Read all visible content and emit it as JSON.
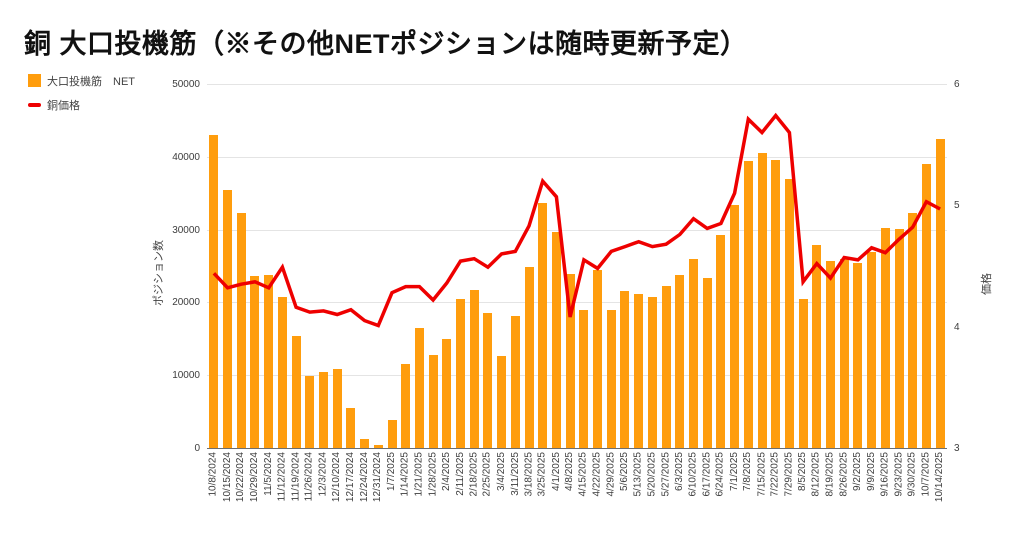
{
  "title": "銅 大口投機筋（※その他NETポジションは随時更新予定）",
  "legend": [
    {
      "label": "大口投機筋　NET",
      "type": "bar"
    },
    {
      "label": "銅価格",
      "type": "line"
    }
  ],
  "colors": {
    "bar": "#ff9d0d",
    "line": "#ee0000",
    "grid": "#e4e4e4",
    "axis_baseline": "#6e6e6e",
    "text": "#3d3d3d"
  },
  "chart_data": {
    "type": "bar+line",
    "title": "銅 大口投機筋（※その他NETポジションは随時更新予定）",
    "grid": true,
    "legend_position": "top-left",
    "categories": [
      "10/8/2024",
      "10/15/2024",
      "10/22/2024",
      "10/29/2024",
      "11/5/2024",
      "11/12/2024",
      "11/19/2024",
      "11/26/2024",
      "12/3/2024",
      "12/10/2024",
      "12/17/2024",
      "12/24/2024",
      "12/31/2024",
      "1/7/2025",
      "1/14/2025",
      "1/21/2025",
      "1/28/2025",
      "2/4/2025",
      "2/11/2025",
      "2/18/2025",
      "2/25/2025",
      "3/4/2025",
      "3/11/2025",
      "3/18/2025",
      "3/25/2025",
      "4/1/2025",
      "4/8/2025",
      "4/15/2025",
      "4/22/2025",
      "4/29/2025",
      "5/6/2025",
      "5/13/2025",
      "5/20/2025",
      "5/27/2025",
      "6/3/2025",
      "6/10/2025",
      "6/17/2025",
      "6/24/2025",
      "7/1/2025",
      "7/8/2025",
      "7/15/2025",
      "7/22/2025",
      "7/29/2025",
      "8/5/2025",
      "8/12/2025",
      "8/19/2025",
      "8/26/2025",
      "9/2/2025",
      "9/9/2025",
      "9/16/2025",
      "9/23/2025",
      "9/30/2025",
      "10/7/2025",
      "10/14/2025"
    ],
    "series": [
      {
        "name": "大口投機筋　NET",
        "type": "bar",
        "axis": "left",
        "values": [
          43000,
          35400,
          32300,
          23600,
          23700,
          20700,
          15400,
          9900,
          10400,
          10800,
          5500,
          1300,
          400,
          3800,
          11500,
          16500,
          12800,
          15000,
          20500,
          21700,
          18500,
          12600,
          18200,
          24900,
          33700,
          29700,
          23900,
          18900,
          24400,
          18900,
          21500,
          21200,
          20700,
          22200,
          23700,
          26000,
          23400,
          29200,
          33400,
          39400,
          40500,
          39500,
          36900,
          20400,
          27900,
          25700,
          26000,
          25400,
          26900,
          30200,
          30100,
          32300,
          39000,
          42500
        ]
      },
      {
        "name": "銅価格",
        "type": "line",
        "axis": "right",
        "values": [
          4.44,
          4.32,
          4.35,
          4.37,
          4.32,
          4.49,
          4.16,
          4.12,
          4.13,
          4.1,
          4.14,
          4.05,
          4.01,
          4.28,
          4.33,
          4.33,
          4.22,
          4.36,
          4.54,
          4.56,
          4.49,
          4.6,
          4.62,
          4.83,
          5.2,
          5.07,
          4.08,
          4.55,
          4.48,
          4.62,
          4.66,
          4.7,
          4.66,
          4.68,
          4.76,
          4.89,
          4.81,
          4.85,
          5.1,
          5.71,
          5.6,
          5.74,
          5.6,
          4.37,
          4.52,
          4.4,
          4.57,
          4.55,
          4.65,
          4.61,
          4.72,
          4.82,
          5.03,
          4.97
        ]
      }
    ],
    "left_axis": {
      "title": "ポジション数",
      "min": 0,
      "max": 50000,
      "ticks": [
        0,
        10000,
        20000,
        30000,
        40000,
        50000
      ]
    },
    "right_axis": {
      "title": "価格",
      "min": 3,
      "max": 6,
      "ticks": [
        3,
        4,
        5,
        6
      ]
    }
  }
}
